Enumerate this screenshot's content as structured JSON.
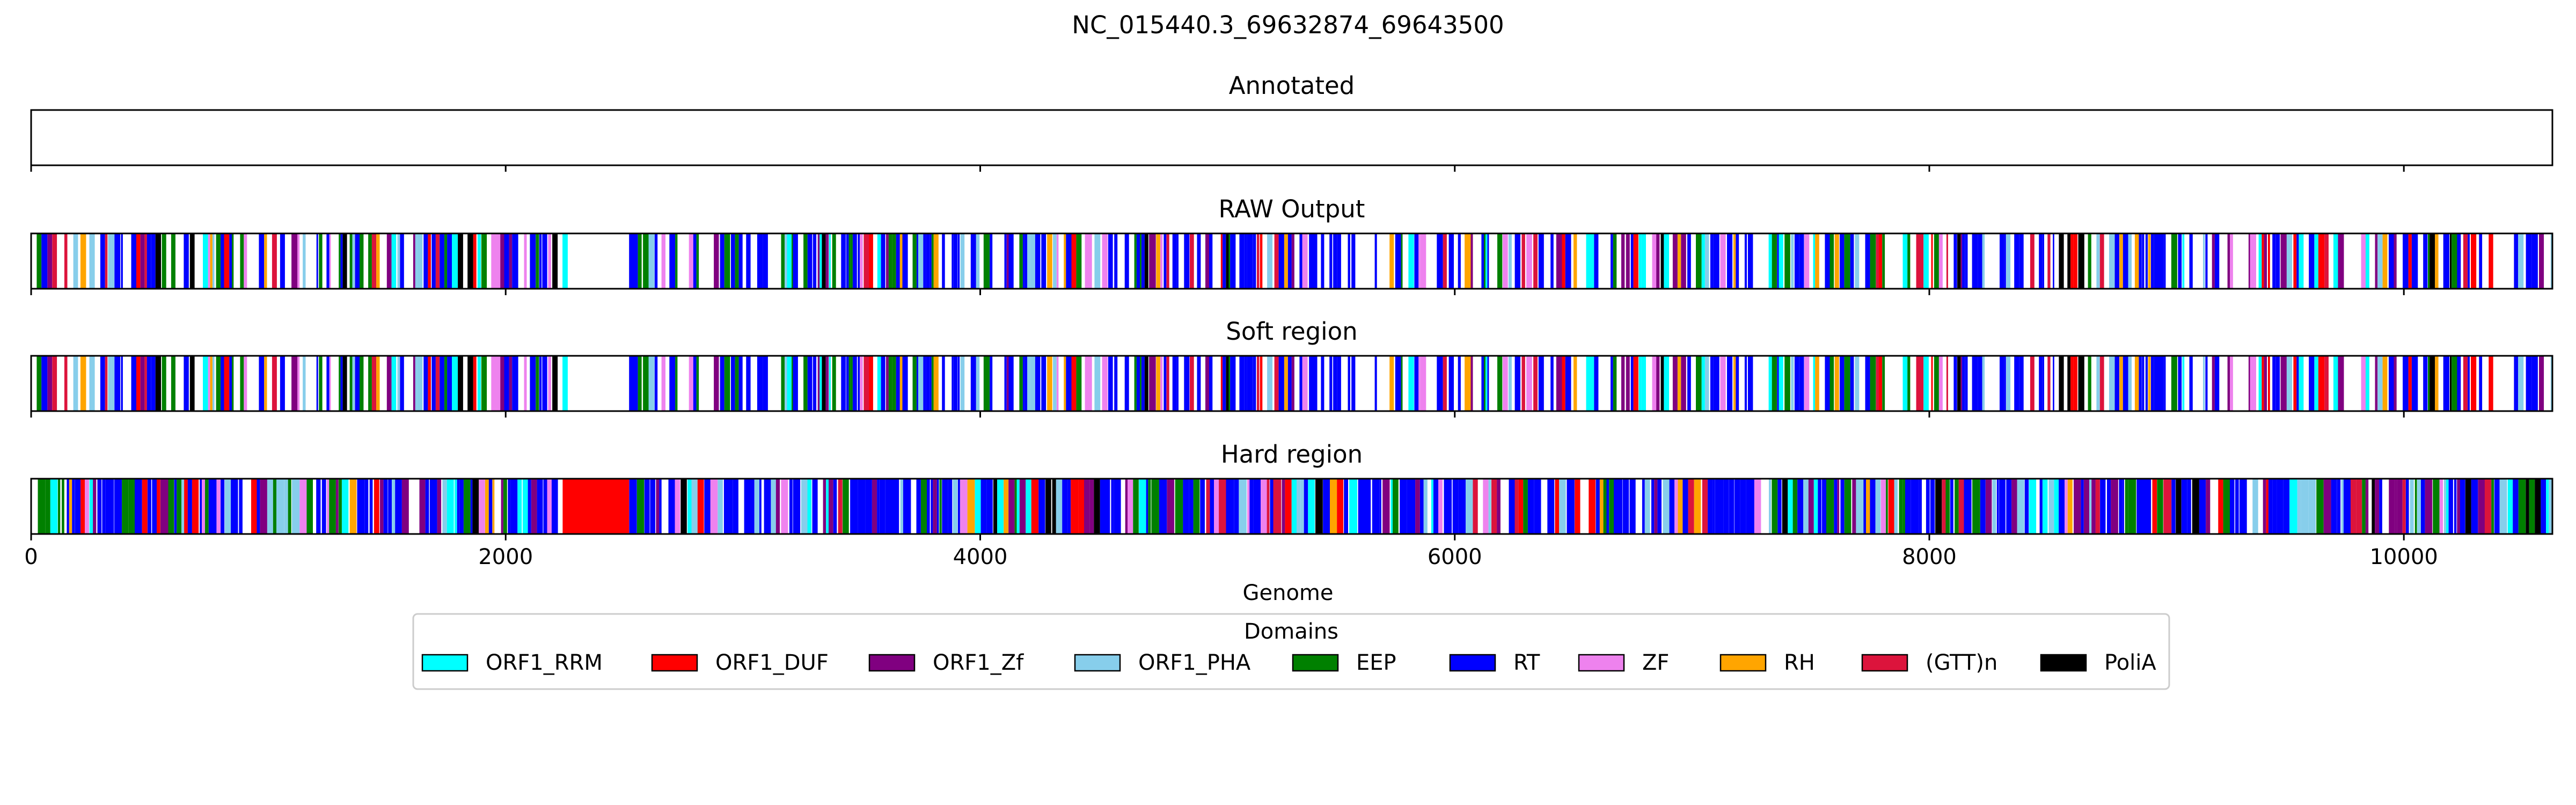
{
  "chart_data": {
    "type": "genome-track",
    "title": "NC_015440.3_69632874_69643500",
    "xlabel": "Genome",
    "xlim": [
      0,
      10626
    ],
    "xticks": [
      0,
      2000,
      4000,
      6000,
      8000,
      10000
    ],
    "xtick_labels": [
      "0",
      "2000",
      "4000",
      "6000",
      "8000",
      "10000"
    ],
    "tracks": [
      {
        "title": "Annotated",
        "features": []
      },
      {
        "title": "RAW Output",
        "features": "segments_raw",
        "gaps": [
          [
            900,
            960
          ],
          [
            2250,
            2520
          ],
          [
            3930,
            3960
          ],
          [
            4980,
            4990
          ],
          [
            9300,
            9320
          ],
          [
            9790,
            9820
          ]
        ]
      },
      {
        "title": "Soft region",
        "features": "segments_raw",
        "gaps": [
          [
            900,
            960
          ],
          [
            2250,
            2520
          ],
          [
            3930,
            3960
          ],
          [
            4980,
            4990
          ],
          [
            9300,
            9320
          ],
          [
            9790,
            9820
          ]
        ]
      },
      {
        "title": "Hard region",
        "features": "segments_hard",
        "blocks": [
          {
            "domain": "ORF1_DUF",
            "start": 2240,
            "end": 2520
          }
        ]
      }
    ],
    "legend": {
      "title": "Domains",
      "placement": "bottom-center",
      "entries": [
        {
          "name": "ORF1_RRM",
          "color": "#00ffff"
        },
        {
          "name": "ORF1_DUF",
          "color": "#ff0000"
        },
        {
          "name": "ORF1_Zf",
          "color": "#800080"
        },
        {
          "name": "ORF1_PHA",
          "color": "#87ceeb"
        },
        {
          "name": "EEP",
          "color": "#008000"
        },
        {
          "name": "RT",
          "color": "#0000ff"
        },
        {
          "name": "ZF",
          "color": "#ee82ee"
        },
        {
          "name": "RH",
          "color": "#ffa500"
        },
        {
          "name": "(GTT)n",
          "color": "#dc143c"
        },
        {
          "name": "PoliA",
          "color": "#000000"
        }
      ]
    }
  }
}
